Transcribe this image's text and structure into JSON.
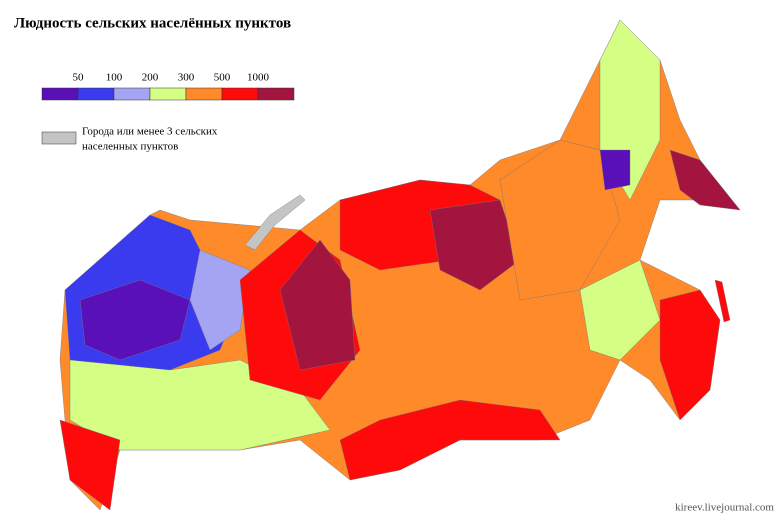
{
  "title": "Людность сельских населённых пунктов",
  "legend": {
    "colors": [
      "#5a10b8",
      "#3a3aee",
      "#a4a4f2",
      "#d4ff84",
      "#ff8a2a",
      "#ff0a0a",
      "#a3153e"
    ],
    "thresholds": [
      50,
      100,
      200,
      300,
      500,
      1000
    ],
    "no_data": {
      "color": "#c4c4c4",
      "lines": [
        "Города или менее 3 сельских",
        "населенных пунктов"
      ]
    }
  },
  "credit": "kireev.livejournal.com"
}
